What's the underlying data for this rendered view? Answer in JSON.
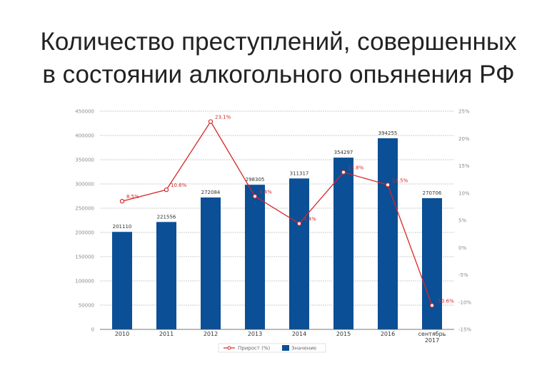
{
  "title": {
    "line1": "Количество преступлений, совершенных",
    "line2": "в состоянии алкогольного опьянения РФ"
  },
  "colors": {
    "bar": "#0b4f96",
    "line": "#d62728",
    "grid": "#bdbdbd"
  },
  "chart_data": {
    "type": "bar",
    "categories": [
      "2010",
      "2011",
      "2012",
      "2013",
      "2014",
      "2015",
      "2016",
      "сентябрь 2017"
    ],
    "y_left": {
      "min": 0,
      "max": 450000,
      "ticks": [
        "0",
        "50000",
        "100000",
        "150000",
        "200000",
        "250000",
        "300000",
        "350000",
        "400000",
        "450000"
      ]
    },
    "y_right": {
      "min": -15,
      "max": 25,
      "ticks": [
        "-15%",
        "-10%",
        "-5%",
        "0%",
        "5%",
        "10%",
        "15%",
        "20%",
        "25%"
      ]
    },
    "series": [
      {
        "name": "Значение",
        "type": "bar",
        "axis": "left",
        "values": [
          201110,
          221556,
          272084,
          298305,
          311317,
          354297,
          394255,
          270706
        ],
        "labels": [
          "201110",
          "221556",
          "272084",
          "298305",
          "311317",
          "354297",
          "394255",
          "270706"
        ]
      },
      {
        "name": "Прирост (%)",
        "type": "line",
        "axis": "right",
        "values": [
          8.5,
          10.6,
          23.1,
          9.4,
          4.4,
          13.8,
          11.5,
          -10.6
        ],
        "labels": [
          "8.5%",
          "10.6%",
          "23.1%",
          "9.4%",
          "4.4%",
          "13.8%",
          "11.5%",
          "-10.6%"
        ]
      }
    ],
    "legend_position": "bottom",
    "grid": true
  }
}
